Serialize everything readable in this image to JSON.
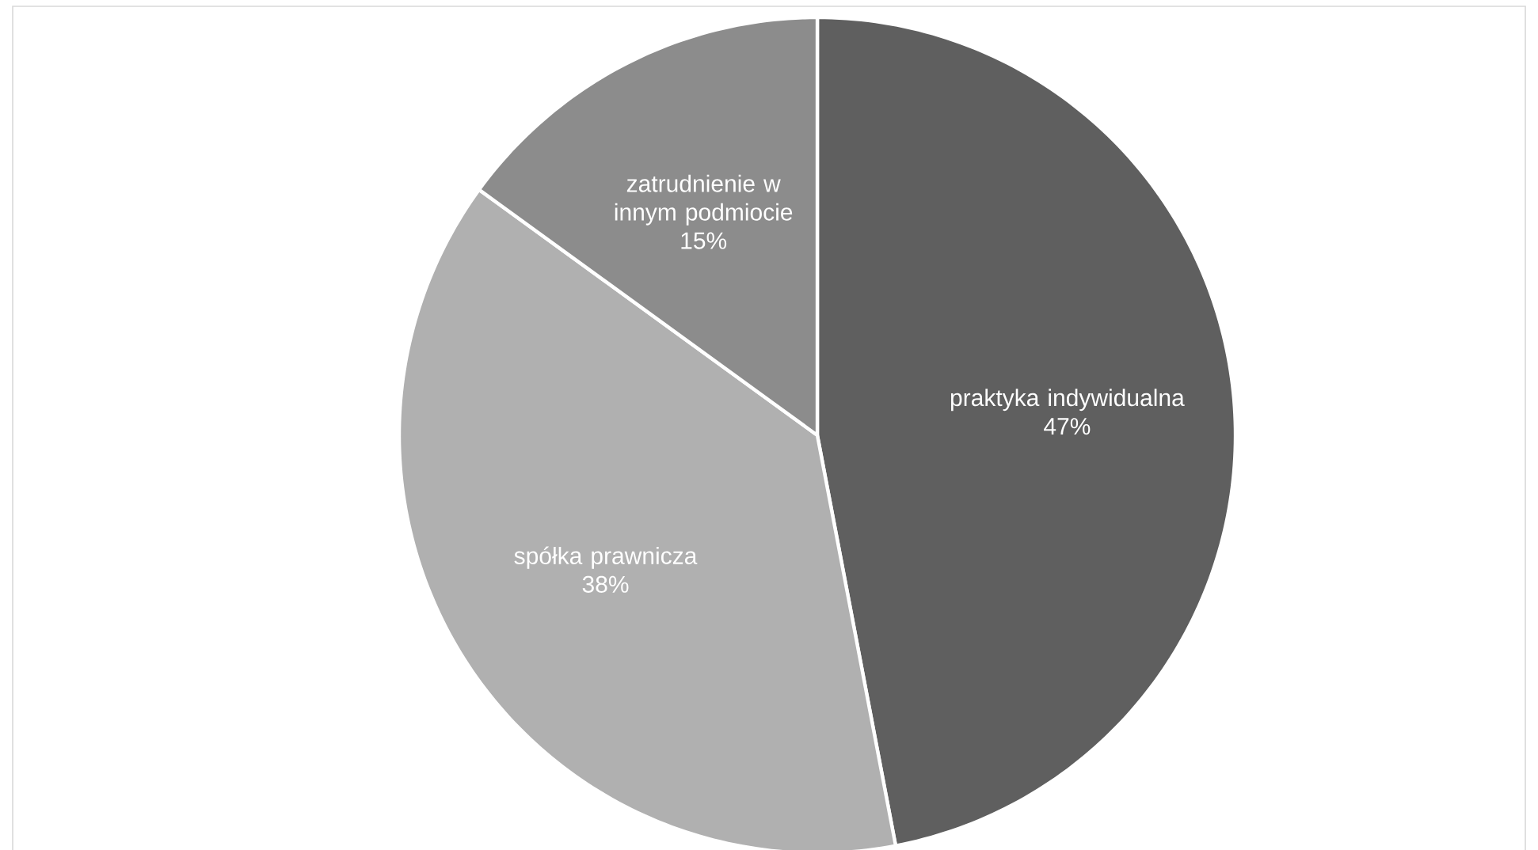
{
  "chart_data": {
    "type": "pie",
    "categories": [
      "praktyka indywidualna",
      "spółka prawnicza",
      "zatrudnienie w innym podmiocie"
    ],
    "values": [
      47,
      38,
      15
    ],
    "colors": [
      "#5f5f5f",
      "#b0b0b0",
      "#8c8c8c"
    ],
    "value_labels": [
      "47%",
      "38%",
      "15%"
    ]
  }
}
